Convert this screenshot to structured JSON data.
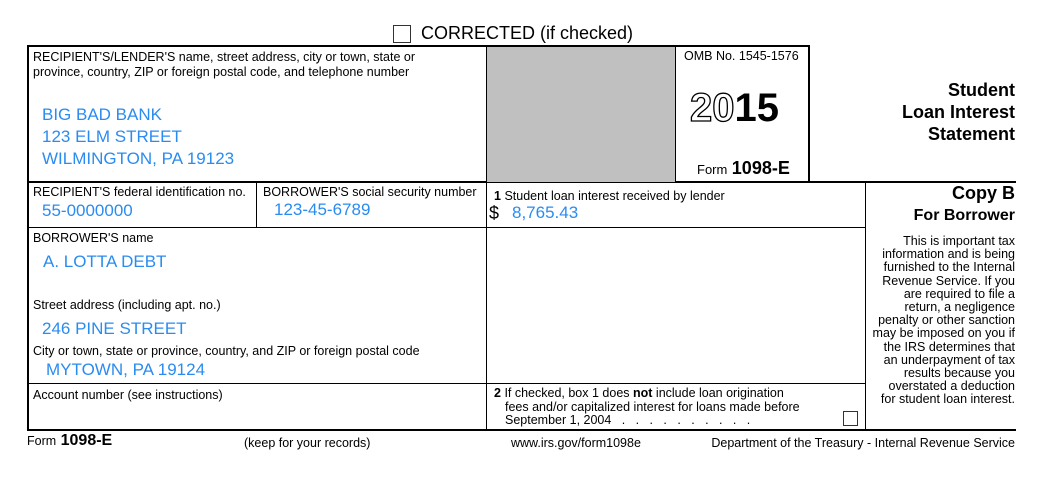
{
  "corrected": {
    "label": "CORRECTED (if checked)",
    "checked": false
  },
  "recipient": {
    "label_line1": "RECIPIENT'S/LENDER'S name, street address, city or town, state or",
    "label_line2": "province, country, ZIP or foreign postal code, and telephone number",
    "name": "BIG BAD BANK",
    "street": "123 ELM STREET",
    "city": "WILMINGTON, PA 19123"
  },
  "omb": "OMB No. 1545-1576",
  "year": {
    "prefix": "20",
    "suffix": "15"
  },
  "form_label": {
    "prefix": "Form",
    "number": "1098-E"
  },
  "title": {
    "line1": "Student",
    "line2": "Loan Interest",
    "line3": "Statement"
  },
  "recipient_id": {
    "label": "RECIPIENT'S federal identification no.",
    "value": "55-0000000"
  },
  "borrower_ssn": {
    "label": "BORROWER'S social security number",
    "value": "123-45-6789"
  },
  "box1": {
    "num": "1",
    "label": "Student loan interest received by lender",
    "currency": "$",
    "value": "8,765.43"
  },
  "copy": {
    "title": "Copy B",
    "subtitle": "For Borrower",
    "notice": "This is important tax information and is being furnished to the Internal Revenue Service. If you are required to file a return, a negligence penalty or other sanction may be imposed on you if the IRS determines that an underpayment of tax results because you overstated a deduction for student loan interest."
  },
  "borrower": {
    "name_label": "BORROWER'S name",
    "name": "A. LOTTA DEBT",
    "street_label": "Street address (including apt. no.)",
    "street": "246 PINE STREET",
    "city_label": "City or town, state or province, country, and ZIP or foreign postal code",
    "city": "MYTOWN, PA 19124"
  },
  "account": {
    "label": "Account number (see instructions)"
  },
  "box2": {
    "num": "2",
    "text_a": "If checked, box 1 does ",
    "text_bold": "not",
    "text_b": " include loan origination",
    "line2": "fees and/or capitalized interest for loans made before",
    "line3": "September 1, 2004",
    "dots": ".   .   .   .   .   .   .   .   .   .",
    "checked": false
  },
  "footer": {
    "form_prefix": "Form",
    "form_number": "1098-E",
    "keep": "(keep for your records)",
    "url": "www.irs.gov/form1098e",
    "dept": "Department of the Treasury - Internal Revenue Service"
  }
}
